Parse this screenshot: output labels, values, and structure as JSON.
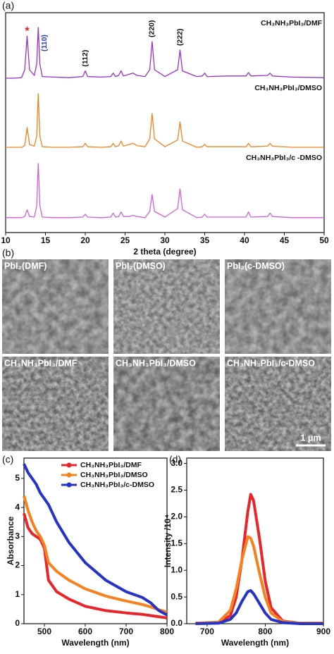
{
  "panel_labels": [
    "(a)",
    "(b)",
    "(c)",
    "(d)"
  ],
  "chart_data": [
    {
      "type": "line",
      "xlabel": "2 theta (degree)",
      "xlim": [
        10,
        50
      ],
      "xticks": [
        10,
        15,
        20,
        25,
        30,
        35,
        40,
        45,
        50
      ],
      "x": [
        10,
        11,
        12,
        12.4,
        12.7,
        13.0,
        13.6,
        13.9,
        14.1,
        14.3,
        14.6,
        16,
        18,
        19.7,
        20.0,
        20.3,
        22,
        23.2,
        23.5,
        23.8,
        24.2,
        24.5,
        24.8,
        25.5,
        26.0,
        26.5,
        27.5,
        28.1,
        28.4,
        28.7,
        30,
        31.6,
        31.9,
        32.2,
        34,
        34.7,
        35.0,
        35.3,
        38,
        40.2,
        40.5,
        40.8,
        42.9,
        43.2,
        43.5,
        46,
        50
      ],
      "series": [
        {
          "name": "CH₃NH₃PbI₃/DMF",
          "color": "#9b30c8",
          "values": [
            5,
            5,
            6,
            20,
            80,
            20,
            10,
            30,
            95,
            30,
            8,
            7,
            6,
            8,
            18,
            8,
            7,
            8,
            14,
            8,
            10,
            18,
            9,
            12,
            14,
            10,
            8,
            20,
            70,
            20,
            8,
            20,
            55,
            18,
            8,
            9,
            14,
            8,
            9,
            9,
            15,
            9,
            10,
            14,
            9,
            7,
            6
          ]
        },
        {
          "name": "CH₃NH₃PbI₃/DMSO",
          "color": "#f0821e",
          "values": [
            5,
            5,
            5,
            8,
            40,
            10,
            7,
            25,
            100,
            25,
            6,
            5,
            5,
            6,
            12,
            6,
            5,
            6,
            12,
            6,
            8,
            16,
            7,
            10,
            12,
            8,
            6,
            20,
            65,
            20,
            6,
            18,
            50,
            16,
            5,
            6,
            10,
            6,
            6,
            6,
            12,
            6,
            7,
            12,
            7,
            5,
            5
          ]
        },
        {
          "name": "CH₃NH₃PbI₃/c -DMSO",
          "color": "#d060d8",
          "values": [
            4,
            4,
            4,
            6,
            18,
            6,
            5,
            25,
            100,
            25,
            5,
            4,
            4,
            5,
            10,
            5,
            4,
            5,
            12,
            5,
            6,
            14,
            6,
            6,
            8,
            6,
            4,
            15,
            45,
            15,
            5,
            20,
            55,
            18,
            4,
            5,
            10,
            5,
            5,
            5,
            14,
            5,
            6,
            12,
            6,
            4,
            4
          ]
        }
      ],
      "annotations": [
        {
          "text": "*",
          "x": 12.7,
          "color": "#e0202a"
        },
        {
          "text": "(110)",
          "x": 14.1,
          "color": "#2a3ad0"
        },
        {
          "text": "(112)",
          "x": 20.0,
          "color": "#111111"
        },
        {
          "text": "(220)",
          "x": 28.4,
          "color": "#111111"
        },
        {
          "text": "(222)",
          "x": 31.9,
          "color": "#111111"
        }
      ]
    },
    {
      "type": "line",
      "xlabel": "Wavelength (nm)",
      "ylabel": "Absorbance",
      "xlim": [
        450,
        800
      ],
      "xticks": [
        500,
        600,
        700,
        800
      ],
      "ylim": [
        0,
        5.7
      ],
      "yticks": [
        0,
        1,
        2,
        3,
        4,
        5
      ],
      "legend": "upper right",
      "x": [
        450,
        460,
        470,
        480,
        490,
        500,
        510,
        530,
        560,
        600,
        650,
        700,
        740,
        760,
        780,
        800
      ],
      "series": [
        {
          "name": "CH₃NH₃PbI₃/DMF",
          "color": "#e8262a",
          "values": [
            3.8,
            3.3,
            3.1,
            3.0,
            2.9,
            2.6,
            1.5,
            1.1,
            0.85,
            0.6,
            0.45,
            0.37,
            0.32,
            0.28,
            0.24,
            0.2
          ]
        },
        {
          "name": "CH₃NH₃PbI₃/DMSO",
          "color": "#f5821f",
          "values": [
            4.4,
            3.9,
            3.5,
            3.2,
            3.0,
            2.7,
            2.1,
            1.8,
            1.5,
            1.2,
            0.95,
            0.78,
            0.66,
            0.58,
            0.48,
            0.4
          ]
        },
        {
          "name": "CH₃NH₃PbI₃/c-DMSO",
          "color": "#2633c9",
          "values": [
            5.5,
            5.2,
            5.0,
            4.8,
            4.5,
            4.3,
            4.1,
            3.5,
            2.8,
            2.1,
            1.5,
            1.1,
            0.9,
            0.72,
            0.45,
            0.3
          ]
        }
      ]
    },
    {
      "type": "line",
      "xlabel": "Wavelength (nm)",
      "ylabel": "Intensity /10⁴",
      "xlim": [
        665,
        900
      ],
      "xticks": [
        700,
        800,
        900
      ],
      "ylim": [
        0,
        3.1
      ],
      "yticks": [
        {
          "value": 0,
          "label": "0.0"
        },
        {
          "value": 0.5,
          "label": "0.5"
        },
        {
          "value": 1,
          "label": "1.0"
        },
        {
          "value": 1.5,
          "label": "1.5"
        },
        {
          "value": 2,
          "label": "2.0"
        },
        {
          "value": 2.5,
          "label": "2.5"
        },
        {
          "value": 3,
          "label": "3.0"
        }
      ],
      "x": [
        680,
        720,
        740,
        750,
        760,
        770,
        775,
        780,
        790,
        800,
        810,
        830,
        860,
        900
      ],
      "series": [
        {
          "color": "#e8262a",
          "values": [
            0.01,
            0.02,
            0.15,
            0.5,
            1.2,
            2.1,
            2.42,
            2.3,
            1.6,
            0.8,
            0.3,
            0.05,
            0.01,
            0.01
          ]
        },
        {
          "color": "#f5821f",
          "values": [
            0.01,
            0.03,
            0.25,
            0.65,
            1.2,
            1.63,
            1.6,
            1.45,
            0.95,
            0.5,
            0.2,
            0.04,
            0.01,
            0.01
          ]
        },
        {
          "color": "#2633c9",
          "values": [
            0.0,
            0.01,
            0.08,
            0.2,
            0.42,
            0.6,
            0.62,
            0.56,
            0.38,
            0.2,
            0.08,
            0.02,
            0.0,
            0.0
          ]
        }
      ]
    }
  ],
  "sem": {
    "images": [
      "PbI₂(DMF)",
      "PbI₂(DMSO)",
      "PbI₂(c-DMSO)",
      "CH₃NH₃PbI₃/DMF",
      "CH₃NH₃PbI₃/DMSO",
      "CH₃NH₃PbI₃/c-DMSO"
    ],
    "scale_bar": "1 μm"
  }
}
